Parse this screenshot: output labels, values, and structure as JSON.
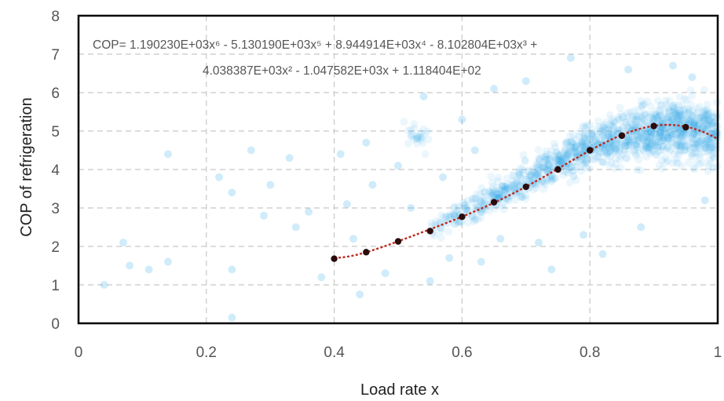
{
  "chart_data": {
    "type": "scatter",
    "xlabel": "Load rate x",
    "ylabel": "COP of  refrigeration",
    "xlim": [
      0,
      1
    ],
    "ylim": [
      0,
      8
    ],
    "x_ticks": [
      "0",
      "0.2",
      "0.4",
      "0.6",
      "0.8",
      "1"
    ],
    "y_ticks": [
      "0",
      "1",
      "2",
      "3",
      "4",
      "5",
      "6",
      "7",
      "8"
    ],
    "grid": true,
    "equation_line1": "COP= 1.190230E+03x⁶ - 5.130190E+03x⁵ + 8.944914E+03x⁴ - 8.102804E+03x³ +",
    "equation_line2": "4.038387E+03x² - 1.047582E+03x + 1.118404E+02",
    "fit_coefficients": [
      1190.23,
      -5130.19,
      8944.914,
      -8102.804,
      4038.387,
      -1047.582,
      111.8404
    ],
    "fit_range": [
      0.4,
      1.0
    ],
    "fit_markers": [
      {
        "x": 0.4,
        "y": 1.68
      },
      {
        "x": 0.45,
        "y": 1.85
      },
      {
        "x": 0.5,
        "y": 2.13
      },
      {
        "x": 0.55,
        "y": 2.4
      },
      {
        "x": 0.6,
        "y": 2.77
      },
      {
        "x": 0.65,
        "y": 3.15
      },
      {
        "x": 0.7,
        "y": 3.55
      },
      {
        "x": 0.75,
        "y": 4.0
      },
      {
        "x": 0.8,
        "y": 4.5
      },
      {
        "x": 0.85,
        "y": 4.88
      },
      {
        "x": 0.9,
        "y": 5.13
      },
      {
        "x": 0.95,
        "y": 5.1
      }
    ],
    "scatter_sparse": [
      {
        "x": 0.04,
        "y": 1.0
      },
      {
        "x": 0.07,
        "y": 2.1
      },
      {
        "x": 0.08,
        "y": 1.5
      },
      {
        "x": 0.11,
        "y": 1.4
      },
      {
        "x": 0.14,
        "y": 4.4
      },
      {
        "x": 0.14,
        "y": 1.6
      },
      {
        "x": 0.22,
        "y": 3.8
      },
      {
        "x": 0.24,
        "y": 0.15
      },
      {
        "x": 0.24,
        "y": 1.4
      },
      {
        "x": 0.24,
        "y": 3.4
      },
      {
        "x": 0.27,
        "y": 4.5
      },
      {
        "x": 0.29,
        "y": 2.8
      },
      {
        "x": 0.3,
        "y": 3.6
      },
      {
        "x": 0.33,
        "y": 4.3
      },
      {
        "x": 0.34,
        "y": 2.5
      },
      {
        "x": 0.36,
        "y": 2.9
      },
      {
        "x": 0.38,
        "y": 1.2
      },
      {
        "x": 0.41,
        "y": 4.4
      },
      {
        "x": 0.42,
        "y": 3.1
      },
      {
        "x": 0.43,
        "y": 2.2
      },
      {
        "x": 0.44,
        "y": 0.75
      },
      {
        "x": 0.45,
        "y": 4.7
      },
      {
        "x": 0.46,
        "y": 3.6
      },
      {
        "x": 0.48,
        "y": 1.3
      },
      {
        "x": 0.5,
        "y": 4.1
      },
      {
        "x": 0.52,
        "y": 3.0
      },
      {
        "x": 0.53,
        "y": 4.8
      },
      {
        "x": 0.54,
        "y": 5.9
      },
      {
        "x": 0.55,
        "y": 1.1
      },
      {
        "x": 0.57,
        "y": 3.8
      },
      {
        "x": 0.58,
        "y": 1.7
      },
      {
        "x": 0.6,
        "y": 5.3
      },
      {
        "x": 0.62,
        "y": 4.5
      },
      {
        "x": 0.63,
        "y": 1.6
      },
      {
        "x": 0.65,
        "y": 6.1
      },
      {
        "x": 0.66,
        "y": 2.2
      },
      {
        "x": 0.7,
        "y": 6.3
      },
      {
        "x": 0.72,
        "y": 2.1
      },
      {
        "x": 0.74,
        "y": 1.4
      },
      {
        "x": 0.77,
        "y": 6.9
      },
      {
        "x": 0.79,
        "y": 2.3
      },
      {
        "x": 0.82,
        "y": 1.8
      },
      {
        "x": 0.86,
        "y": 6.6
      },
      {
        "x": 0.88,
        "y": 2.5
      },
      {
        "x": 0.93,
        "y": 6.7
      },
      {
        "x": 0.96,
        "y": 6.4
      },
      {
        "x": 0.98,
        "y": 3.2
      }
    ],
    "scatter_cloud_center": [
      {
        "x": 0.55,
        "y": 2.45
      },
      {
        "x": 0.6,
        "y": 2.85
      },
      {
        "x": 0.65,
        "y": 3.25
      },
      {
        "x": 0.7,
        "y": 3.7
      },
      {
        "x": 0.75,
        "y": 4.15
      },
      {
        "x": 0.8,
        "y": 4.55
      },
      {
        "x": 0.85,
        "y": 4.85
      },
      {
        "x": 0.9,
        "y": 5.0
      },
      {
        "x": 0.95,
        "y": 5.05
      },
      {
        "x": 1.0,
        "y": 4.9
      }
    ],
    "colors": {
      "scatter": "#29a8e6",
      "fit_line": "#c0281e",
      "marker": "#2a0c0c",
      "grid": "#c8c8c8",
      "frame": "#000000"
    }
  }
}
